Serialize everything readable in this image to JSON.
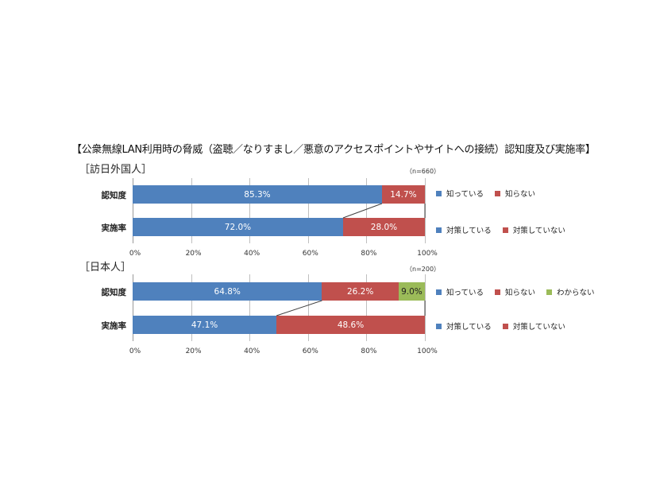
{
  "title": "【公衆無線LAN利用時の脅威（盗聴／なりすまし／悪意のアクセスポイントやサイトへの接続）認知度及び実施率】",
  "colors": {
    "blue": "#4f81bd",
    "red": "#c0504d",
    "green": "#9bbb59"
  },
  "axis_ticks": [
    "0%",
    "20%",
    "40%",
    "60%",
    "80%",
    "100%"
  ],
  "chart_data": [
    {
      "type": "bar",
      "orientation": "horizontal-stacked-100",
      "title": "［訪日外国人］",
      "sample": "（n=660）",
      "categories": [
        "認知度",
        "実施率"
      ],
      "xlim": [
        0,
        100
      ],
      "xticks": [
        "0%",
        "20%",
        "40%",
        "60%",
        "80%",
        "100%"
      ],
      "grid": true,
      "rows": [
        {
          "category": "認知度",
          "segments": [
            {
              "name": "知っている",
              "value": 85.3,
              "label": "85.3%",
              "color": "#4f81bd"
            },
            {
              "name": "知らない",
              "value": 14.7,
              "label": "14.7%",
              "color": "#c0504d"
            }
          ],
          "legend": [
            "知っている",
            "知らない"
          ]
        },
        {
          "category": "実施率",
          "segments": [
            {
              "name": "対策している",
              "value": 72.0,
              "label": "72.0%",
              "color": "#4f81bd"
            },
            {
              "name": "対策していない",
              "value": 28.0,
              "label": "28.0%",
              "color": "#c0504d"
            }
          ],
          "legend": [
            "対策している",
            "対策していない"
          ]
        }
      ]
    },
    {
      "type": "bar",
      "orientation": "horizontal-stacked-100",
      "title": "［日本人］",
      "sample": "（n=200）",
      "categories": [
        "認知度",
        "実施率"
      ],
      "xlim": [
        0,
        100
      ],
      "xticks": [
        "0%",
        "20%",
        "40%",
        "60%",
        "80%",
        "100%"
      ],
      "grid": true,
      "rows": [
        {
          "category": "認知度",
          "segments": [
            {
              "name": "知っている",
              "value": 64.8,
              "label": "64.8%",
              "color": "#4f81bd"
            },
            {
              "name": "知らない",
              "value": 26.2,
              "label": "26.2%",
              "color": "#c0504d"
            },
            {
              "name": "わからない",
              "value": 9.0,
              "label": "9.0%",
              "color": "#9bbb59"
            }
          ],
          "legend": [
            "知っている",
            "知らない",
            "わからない"
          ]
        },
        {
          "category": "実施率",
          "segments": [
            {
              "name": "対策している",
              "value": 47.1,
              "label": "47.1%",
              "color": "#4f81bd"
            },
            {
              "name": "対策していない",
              "value": 48.6,
              "label": "48.6%",
              "color": "#c0504d"
            }
          ],
          "legend": [
            "対策している",
            "対策していない"
          ]
        }
      ]
    }
  ]
}
